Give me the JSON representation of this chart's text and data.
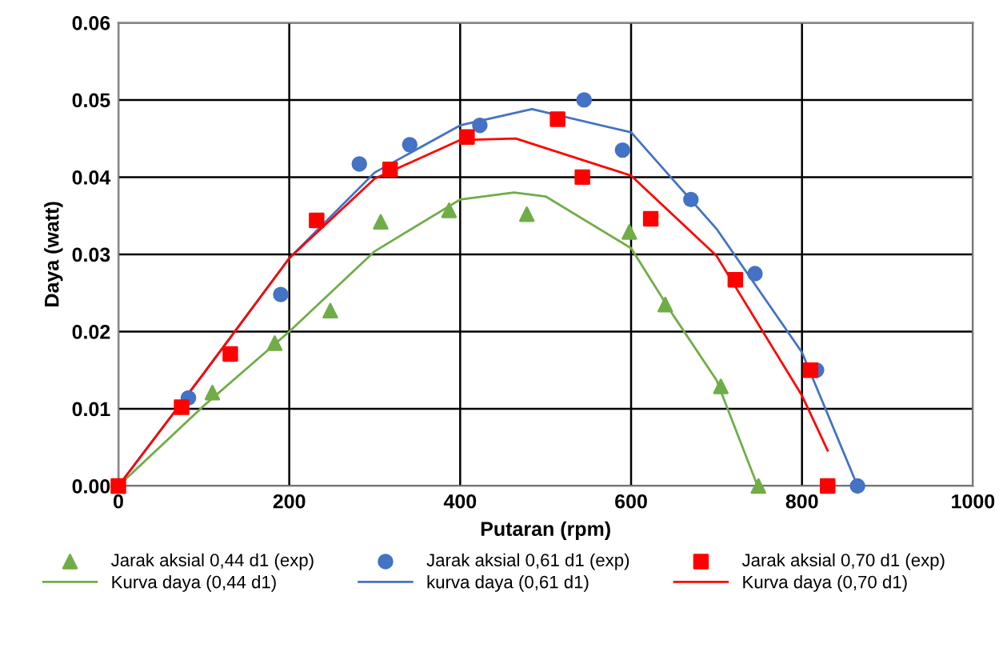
{
  "chart_data": {
    "type": "scatter",
    "xlabel": "Putaran (rpm)",
    "ylabel": "Daya (watt)",
    "xlim": [
      0,
      1000
    ],
    "ylim": [
      0,
      0.06
    ],
    "xticks": [
      0,
      200,
      400,
      600,
      800,
      1000
    ],
    "yticks": [
      {
        "value": 0,
        "label": "0.00"
      },
      {
        "value": 0.01,
        "label": "0.01"
      },
      {
        "value": 0.02,
        "label": "0.02"
      },
      {
        "value": 0.03,
        "label": "0.03"
      },
      {
        "value": 0.04,
        "label": "0.04"
      },
      {
        "value": 0.05,
        "label": "0.05"
      },
      {
        "value": 0.06,
        "label": "0.06"
      }
    ],
    "grid": true,
    "legend": "bottom",
    "series": [
      {
        "name": "Jarak aksial 0,44 d1 (exp)",
        "marker": "triangle",
        "color": "#70ad47",
        "x": [
          0,
          110,
          183,
          248,
          307,
          387,
          478,
          598,
          640,
          705,
          749
        ],
        "values": [
          0,
          0.0121,
          0.0185,
          0.0227,
          0.0342,
          0.0357,
          0.0352,
          0.0329,
          0.0235,
          0.0129,
          0
        ]
      },
      {
        "name": "Kurva daya (0,44 d1)",
        "type": "line",
        "color": "#70ad47",
        "x": [
          0,
          100,
          200,
          300,
          400,
          463,
          500,
          600,
          650,
          700,
          748
        ],
        "values": [
          0,
          0.0104,
          0.02,
          0.0304,
          0.0371,
          0.038,
          0.0375,
          0.0308,
          0.022,
          0.0137,
          0
        ]
      },
      {
        "name": "Jarak aksial 0,61 d1 (exp)",
        "marker": "circle",
        "color": "#4472c4",
        "x": [
          0,
          82,
          190,
          282,
          341,
          423,
          545,
          590,
          670,
          745,
          817,
          865
        ],
        "values": [
          0,
          0.0114,
          0.0248,
          0.0417,
          0.0442,
          0.0467,
          0.05,
          0.0435,
          0.0371,
          0.0275,
          0.015,
          0
        ]
      },
      {
        "name": "kurva daya (0,61 d1)",
        "type": "line",
        "color": "#4472c4",
        "x": [
          0,
          100,
          200,
          300,
          400,
          484,
          600,
          700,
          800,
          865
        ],
        "values": [
          0,
          0.0146,
          0.0295,
          0.0406,
          0.0467,
          0.0488,
          0.0458,
          0.0333,
          0.0173,
          0
        ]
      },
      {
        "name": "Jarak aksial 0,70 d1 (exp)",
        "marker": "square",
        "color": "#ff0000",
        "x": [
          0,
          74,
          131,
          232,
          318,
          408,
          514,
          543,
          623,
          722,
          810,
          830
        ],
        "values": [
          0,
          0.0102,
          0.0171,
          0.0344,
          0.041,
          0.0452,
          0.0475,
          0.04,
          0.0346,
          0.0267,
          0.015,
          0
        ]
      },
      {
        "name": "Kurva daya (0,70 d1)",
        "type": "line",
        "color": "#ff0000",
        "x": [
          0,
          100,
          200,
          300,
          400,
          465,
          600,
          700,
          800,
          830
        ],
        "values": [
          0,
          0.0146,
          0.0295,
          0.0398,
          0.0448,
          0.045,
          0.0402,
          0.0298,
          0.0117,
          0.0046
        ]
      }
    ]
  }
}
